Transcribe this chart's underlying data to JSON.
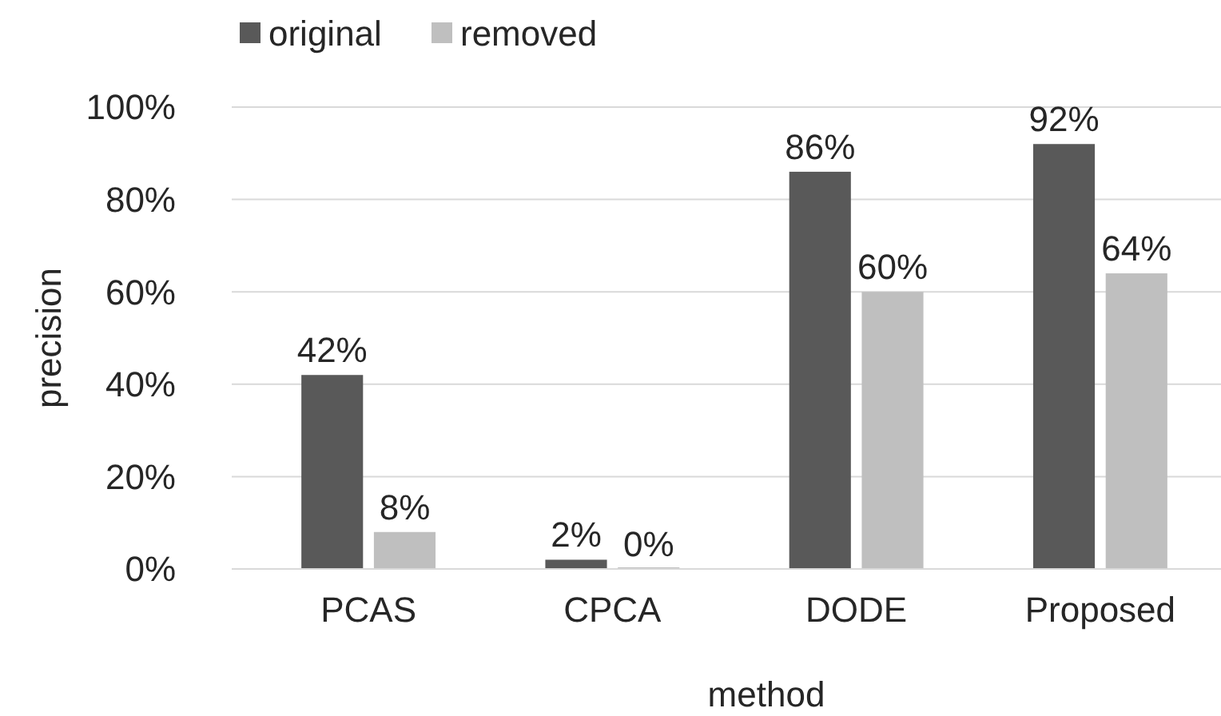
{
  "chart_data": {
    "type": "bar",
    "xlabel": "method",
    "ylabel": "precision",
    "categories": [
      "PCAS",
      "CPCA",
      "DODE",
      "Proposed"
    ],
    "series": [
      {
        "name": "original",
        "color": "#595959",
        "values": [
          42,
          2,
          86,
          92
        ],
        "value_labels": [
          "42%",
          "2%",
          "86%",
          "92%"
        ]
      },
      {
        "name": "removed",
        "color": "#bfbfbf",
        "values": [
          8,
          0,
          60,
          64
        ],
        "value_labels": [
          "8%",
          "0%",
          "60%",
          "64%"
        ]
      }
    ],
    "ylim": [
      0,
      100
    ],
    "yticks": [
      {
        "value": 0,
        "label": "0%"
      },
      {
        "value": 20,
        "label": "20%"
      },
      {
        "value": 40,
        "label": "40%"
      },
      {
        "value": 60,
        "label": "60%"
      },
      {
        "value": 80,
        "label": "80%"
      },
      {
        "value": 100,
        "label": "100%"
      }
    ],
    "grid": "y",
    "legend": "top left"
  }
}
